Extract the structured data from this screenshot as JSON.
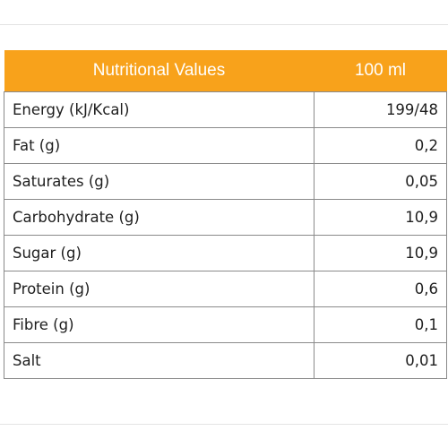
{
  "table": {
    "header": {
      "label": "Nutritional Values",
      "value": "100 ml"
    },
    "rows": [
      {
        "label": "Energy (kJ/Kcal)",
        "value": "199/48"
      },
      {
        "label": "Fat (g)",
        "value": "0,2"
      },
      {
        "label": "Saturates (g)",
        "value": "0,05"
      },
      {
        "label": "Carbohydrate (g)",
        "value": "10,9"
      },
      {
        "label": "Sugar (g)",
        "value": "10,9"
      },
      {
        "label": "Protein (g)",
        "value": "0,6"
      },
      {
        "label": "Fibre (g)",
        "value": "0,1"
      },
      {
        "label": "Salt",
        "value": "0,01"
      }
    ]
  },
  "colors": {
    "header_background": "#f8a21b",
    "header_text": "#ffffff",
    "border": "#8a8a8a",
    "text": "#1e1e1e"
  }
}
